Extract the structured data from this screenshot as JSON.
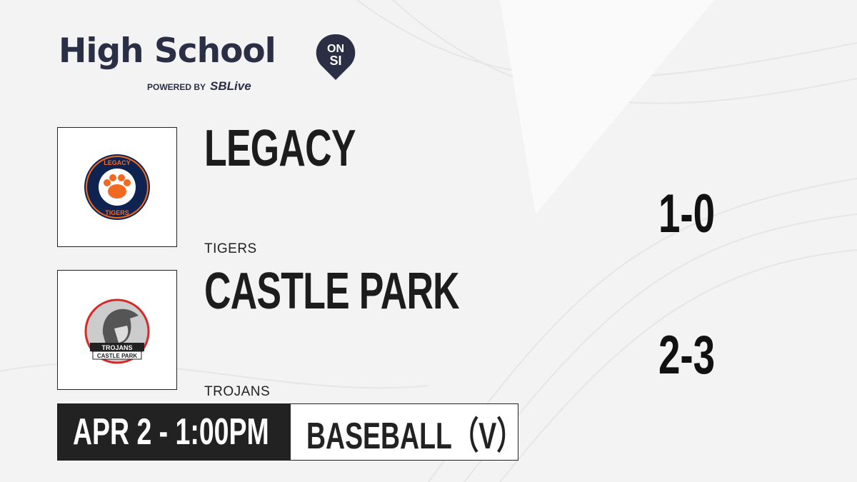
{
  "brand": {
    "title": "High School",
    "badge_top": "ON",
    "badge_bottom": "SI",
    "powered_by": "POWERED BY",
    "partner": "SBLive",
    "partner_color": "#2aaee3",
    "color": "#2b2f45"
  },
  "teams": [
    {
      "name": "LEGACY",
      "mascot": "TIGERS",
      "record": "1-0",
      "logo_text_top": "LEGACY",
      "logo_text_bottom": "TIGERS",
      "colors": {
        "primary": "#0e2350",
        "accent": "#f26a21"
      }
    },
    {
      "name": "CASTLE PARK",
      "mascot": "TROJANS",
      "record": "2-3",
      "logo_text_top": "TROJANS",
      "logo_text_bottom": "CASTLE PARK",
      "colors": {
        "primary": "#d32a2a",
        "accent": "#888888"
      }
    }
  ],
  "game": {
    "datetime": "APR 2 - 1:00PM",
    "sport": "BASEBALL（V）"
  }
}
